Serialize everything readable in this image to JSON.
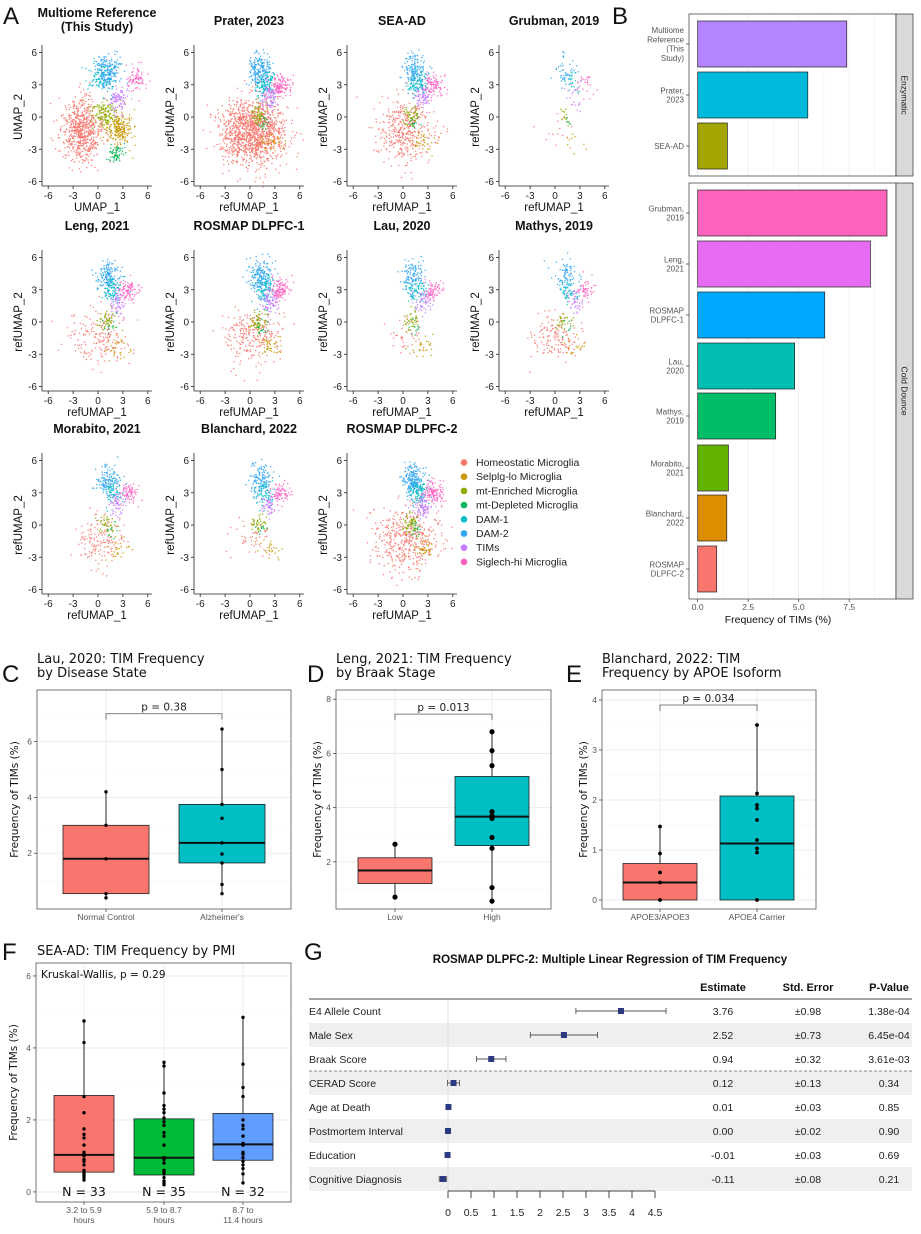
{
  "panel_labels": [
    "A",
    "B",
    "C",
    "D",
    "E",
    "F",
    "G"
  ],
  "legend": {
    "items": [
      {
        "label": "Homeostatic Microglia",
        "color": "#F8766D"
      },
      {
        "label": "Selplg-lo Microglia",
        "color": "#C99800"
      },
      {
        "label": "mt-Enriched Microglia",
        "color": "#8AAB00"
      },
      {
        "label": "mt-Depleted Microglia",
        "color": "#00B65A"
      },
      {
        "label": "DAM-1",
        "color": "#00BFC4"
      },
      {
        "label": "DAM-2",
        "color": "#2FA4F0"
      },
      {
        "label": "TIMs",
        "color": "#C77CFF"
      },
      {
        "label": "Siglech-hi Microglia",
        "color": "#FF61C3"
      }
    ]
  },
  "chart_data": [
    {
      "type": "scatter",
      "panel": "A",
      "title_lines": [
        "Multiome Reference",
        "(This Study)"
      ],
      "xlabel": "UMAP_1",
      "ylabel": "UMAP_2",
      "xticks": [
        -6,
        -3,
        0,
        3,
        6
      ],
      "yticks": [
        -6,
        -3,
        0,
        3,
        6
      ]
    },
    {
      "type": "scatter",
      "panel": "A",
      "title_lines": [
        "Prater, 2023"
      ],
      "xlabel": "refUMAP_1",
      "ylabel": "refUMAP_2",
      "xticks": [
        -6,
        -3,
        0,
        3,
        6
      ],
      "yticks": [
        -6,
        -3,
        0,
        3,
        6
      ]
    },
    {
      "type": "scatter",
      "panel": "A",
      "title_lines": [
        "SEA-AD"
      ],
      "xlabel": "refUMAP_1",
      "ylabel": "refUMAP_2",
      "xticks": [
        -6,
        -3,
        0,
        3,
        6
      ],
      "yticks": [
        -6,
        -3,
        0,
        3,
        6
      ]
    },
    {
      "type": "scatter",
      "panel": "A",
      "title_lines": [
        "Grubman, 2019"
      ],
      "xlabel": "refUMAP_1",
      "ylabel": "refUMAP_2",
      "xticks": [
        -6,
        -3,
        0,
        3,
        6
      ],
      "yticks": [
        -6,
        -3,
        0,
        3,
        6
      ]
    },
    {
      "type": "scatter",
      "panel": "A",
      "title_lines": [
        "Leng, 2021"
      ],
      "xlabel": "refUMAP_1",
      "ylabel": "refUMAP_2",
      "xticks": [
        -6,
        -3,
        0,
        3,
        6
      ],
      "yticks": [
        -6,
        -3,
        0,
        3,
        6
      ]
    },
    {
      "type": "scatter",
      "panel": "A",
      "title_lines": [
        "ROSMAP DLPFC-1"
      ],
      "xlabel": "refUMAP_1",
      "ylabel": "refUMAP_2",
      "xticks": [
        -6,
        -3,
        0,
        3,
        6
      ],
      "yticks": [
        -6,
        -3,
        0,
        3,
        6
      ]
    },
    {
      "type": "scatter",
      "panel": "A",
      "title_lines": [
        "Lau, 2020"
      ],
      "xlabel": "refUMAP_1",
      "ylabel": "refUMAP_2",
      "xticks": [
        -6,
        -3,
        0,
        3,
        6
      ],
      "yticks": [
        -6,
        -3,
        0,
        3,
        6
      ]
    },
    {
      "type": "scatter",
      "panel": "A",
      "title_lines": [
        "Mathys, 2019"
      ],
      "xlabel": "refUMAP_1",
      "ylabel": "refUMAP_2",
      "xticks": [
        -6,
        -3,
        0,
        3,
        6
      ],
      "yticks": [
        -6,
        -3,
        0,
        3,
        6
      ]
    },
    {
      "type": "scatter",
      "panel": "A",
      "title_lines": [
        "Morabito, 2021"
      ],
      "xlabel": "refUMAP_1",
      "ylabel": "refUMAP_2",
      "xticks": [
        -6,
        -3,
        0,
        3,
        6
      ],
      "yticks": [
        -6,
        -3,
        0,
        3,
        6
      ]
    },
    {
      "type": "scatter",
      "panel": "A",
      "title_lines": [
        "Blanchard, 2022"
      ],
      "xlabel": "refUMAP_1",
      "ylabel": "refUMAP_2",
      "xticks": [
        -6,
        -3,
        0,
        3,
        6
      ],
      "yticks": [
        -6,
        -3,
        0,
        3,
        6
      ]
    },
    {
      "type": "scatter",
      "panel": "A",
      "title_lines": [
        "ROSMAP DLPFC-2"
      ],
      "xlabel": "refUMAP_1",
      "ylabel": "refUMAP_2",
      "xticks": [
        -6,
        -3,
        0,
        3,
        6
      ],
      "yticks": [
        -6,
        -3,
        0,
        3,
        6
      ]
    },
    {
      "type": "bar",
      "panel": "B",
      "orientation": "horizontal",
      "xlabel": "Frequency of TIMs (%)",
      "xticks": [
        0,
        2.5,
        5,
        7.5
      ],
      "xtick_labels": [
        "0.0",
        "2.5",
        "5.0",
        "7.5"
      ],
      "facets": [
        {
          "label": "Enzymatic",
          "bars": [
            {
              "label_lines": [
                "Multiome",
                "Reference",
                "(This",
                "Study)"
              ],
              "value": 7.38,
              "color": "#B385FF"
            },
            {
              "label_lines": [
                "Prater,",
                "2023"
              ],
              "value": 5.45,
              "color": "#00BADE"
            },
            {
              "label_lines": [
                "SEA-AD"
              ],
              "value": 1.47,
              "color": "#A3A500"
            }
          ]
        },
        {
          "label": "Cold Dounce",
          "bars": [
            {
              "label_lines": [
                "Grubman,",
                "2019"
              ],
              "value": 9.37,
              "color": "#FF62BC"
            },
            {
              "label_lines": [
                "Leng,",
                "2021"
              ],
              "value": 8.55,
              "color": "#E76BF3"
            },
            {
              "label_lines": [
                "ROSMAP",
                "DLPFC-1"
              ],
              "value": 6.29,
              "color": "#00A9FF"
            },
            {
              "label_lines": [
                "Lau,",
                "2020"
              ],
              "value": 4.8,
              "color": "#00BFB0"
            },
            {
              "label_lines": [
                "Mathys,",
                "2019"
              ],
              "value": 3.86,
              "color": "#00BE67"
            },
            {
              "label_lines": [
                "Morabito,",
                "2021"
              ],
              "value": 1.52,
              "color": "#64B200"
            },
            {
              "label_lines": [
                "Blanchard,",
                "2022"
              ],
              "value": 1.44,
              "color": "#DB8E00"
            },
            {
              "label_lines": [
                "ROSMAP",
                "DLPFC-2"
              ],
              "value": 0.94,
              "color": "#F8766D"
            }
          ]
        }
      ]
    },
    {
      "type": "box",
      "panel": "C",
      "title_lines": [
        "Lau, 2020: TIM Frequency",
        "by Disease State"
      ],
      "ylabel": "Frequency of TIMs (%)",
      "ylim": [
        0,
        7.85
      ],
      "yticks": [
        2,
        4,
        6
      ],
      "categories": [
        [
          "Normal Control"
        ],
        [
          "Alzheimer's"
        ]
      ],
      "boxes": [
        {
          "q1": 0.55,
          "median": 1.8,
          "q3": 3.0,
          "whisker_low": 0.4,
          "whisker_high": 4.2,
          "points": [
            0.4,
            0.55,
            1.8,
            3.0,
            4.2
          ],
          "color": "#F8766D"
        },
        {
          "q1": 1.65,
          "median": 2.37,
          "q3": 3.75,
          "whisker_low": 0.55,
          "whisker_high": 6.45,
          "points": [
            0.55,
            0.88,
            1.65,
            1.97,
            2.37,
            3.25,
            3.75,
            5.0,
            6.45
          ],
          "color": "#00BFC4"
        }
      ],
      "comparison": {
        "label": "p = 0.38",
        "y": 7.0
      }
    },
    {
      "type": "box",
      "panel": "D",
      "title_lines": [
        "Leng, 2021: TIM Frequency",
        "by Braak Stage"
      ],
      "ylabel": "Frequency of TIMs (%)",
      "ylim": [
        0.26,
        8.34
      ],
      "yticks": [
        2,
        4,
        6,
        8
      ],
      "categories": [
        [
          "Low"
        ],
        [
          "High"
        ]
      ],
      "boxes": [
        {
          "q1": 1.2,
          "median": 1.68,
          "q3": 2.15,
          "whisker_low": 0.7,
          "whisker_high": 2.65,
          "points": [
            0.7,
            2.65
          ],
          "color": "#F8766D"
        },
        {
          "q1": 2.6,
          "median": 3.67,
          "q3": 5.15,
          "whisker_low": 0.55,
          "whisker_high": 6.8,
          "points": [
            0.55,
            1.05,
            2.5,
            2.9,
            3.6,
            3.7,
            3.85,
            5.55,
            6.1,
            6.8
          ],
          "color": "#00BFC4"
        }
      ],
      "comparison": {
        "label": "p = 0.013",
        "y": 7.45
      }
    },
    {
      "type": "box",
      "panel": "E",
      "title_lines": [
        "Blanchard, 2022: TIM",
        "Frequency by APOE Isoform"
      ],
      "ylabel": "Frequency of TIMs (%)",
      "ylim": [
        -0.18,
        4.2
      ],
      "yticks": [
        0,
        1,
        2,
        3,
        4
      ],
      "categories": [
        [
          "APOE3/APOE3"
        ],
        [
          "APOE4 Carrier"
        ]
      ],
      "boxes": [
        {
          "q1": 0,
          "median": 0.35,
          "q3": 0.73,
          "whisker_low": 0,
          "whisker_high": 1.47,
          "points": [
            0,
            0.35,
            0.55,
            0.93,
            1.47
          ],
          "color": "#F8766D"
        },
        {
          "q1": 0,
          "median": 1.13,
          "q3": 2.08,
          "whisker_low": 0,
          "whisker_high": 3.5,
          "points": [
            0,
            0.95,
            1.03,
            1.2,
            1.6,
            1.83,
            1.9,
            2.13,
            3.5
          ],
          "color": "#00BFC4"
        }
      ],
      "comparison": {
        "label": "p = 0.034",
        "y": 3.9
      }
    },
    {
      "type": "box",
      "panel": "F",
      "title_lines": [
        "SEA-AD: TIM Frequency by PMI"
      ],
      "ylabel": "Frequency of TIMs (%)",
      "ylim": [
        -0.28,
        6.36
      ],
      "yticks": [
        0,
        2,
        4,
        6
      ],
      "categories": [
        [
          "3.2 to 5.9",
          "hours"
        ],
        [
          "5.9 to 8.7",
          "hours"
        ],
        [
          "8.7 to",
          "11.4 hours"
        ]
      ],
      "boxes": [
        {
          "q1": 0.55,
          "median": 1.03,
          "q3": 2.68,
          "whisker_low": 0.33,
          "whisker_high": 4.75,
          "points": [
            0.33,
            0.4,
            0.45,
            0.5,
            0.55,
            0.6,
            0.75,
            0.85,
            0.9,
            1.0,
            1.03,
            1.1,
            1.3,
            1.5,
            1.6,
            1.75,
            2.2,
            2.65,
            4.15,
            4.75
          ],
          "color": "#F8766D",
          "n_label": "N = 33"
        },
        {
          "q1": 0.47,
          "median": 0.95,
          "q3": 2.03,
          "whisker_low": 0.2,
          "whisker_high": 3.6,
          "points": [
            0.2,
            0.25,
            0.3,
            0.4,
            0.5,
            0.55,
            0.6,
            0.8,
            0.9,
            0.95,
            1.3,
            1.55,
            1.65,
            1.85,
            1.95,
            2.05,
            2.2,
            2.3,
            2.4,
            2.75,
            3.5,
            3.6
          ],
          "color": "#00BA38",
          "n_label": "N = 35"
        },
        {
          "q1": 0.88,
          "median": 1.32,
          "q3": 2.18,
          "whisker_low": 0.25,
          "whisker_high": 4.85,
          "points": [
            0.25,
            0.5,
            0.65,
            0.75,
            0.85,
            0.95,
            1.05,
            1.1,
            1.3,
            1.35,
            1.55,
            1.75,
            1.85,
            2.0,
            2.65,
            2.9,
            3.55,
            4.85
          ],
          "color": "#619CFF",
          "n_label": "N = 32"
        }
      ],
      "annotation": "Kruskal-Wallis, p = 0.29"
    },
    {
      "type": "table",
      "panel": "G",
      "subtype": "forest",
      "title": "ROSMAP DLPFC-2: Multiple Linear Regression of TIM Frequency",
      "columns": [
        "Estimate",
        "Std. Error",
        "P-Value"
      ],
      "xticks": [
        "0",
        "0.5",
        "1",
        "1.5",
        "2",
        "2.5",
        "3",
        "3.5",
        "4",
        "4.5"
      ],
      "point_color": "#2B3A80",
      "rows": [
        {
          "label": "E4 Allele Count",
          "estimate": "3.76",
          "std_error": "±0.98",
          "p_value": "1.38e-04"
        },
        {
          "label": "Male Sex",
          "estimate": "2.52",
          "std_error": "±0.73",
          "p_value": "6.45e-04"
        },
        {
          "label": "Braak Score",
          "estimate": "0.94",
          "std_error": "±0.32",
          "p_value": "3.61e-03"
        },
        {
          "label": "CERAD Score",
          "estimate": "0.12",
          "std_error": "±0.13",
          "p_value": "0.34"
        },
        {
          "label": "Age at Death",
          "estimate": "0.01",
          "std_error": "±0.03",
          "p_value": "0.85"
        },
        {
          "label": "Postmortem Interval",
          "estimate": "0.00",
          "std_error": "±0.02",
          "p_value": "0.90"
        },
        {
          "label": "Education",
          "estimate": "-0.01",
          "std_error": "±0.03",
          "p_value": "0.69"
        },
        {
          "label": "Cognitive Diagnosis",
          "estimate": "-0.11",
          "std_error": "±0.08",
          "p_value": "0.21"
        }
      ]
    }
  ]
}
